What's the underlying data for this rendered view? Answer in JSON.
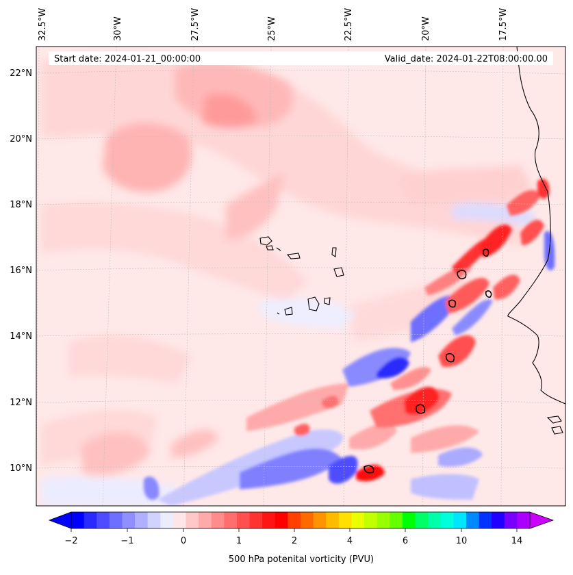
{
  "header": {
    "start_date": "Start date: 2024-01-21_00:00:00",
    "valid_date": "Valid_date: 2024-01-22T08:00:00.00"
  },
  "map": {
    "lon_labels": [
      "32.5°W",
      "30°W",
      "27.5°W",
      "25°W",
      "22.5°W",
      "20°W",
      "17.5°W"
    ],
    "lat_labels": [
      "22°N",
      "20°N",
      "18°N",
      "16°N",
      "14°N",
      "12°N",
      "10°N"
    ],
    "background_color": "#ffe8e8"
  },
  "colorbar": {
    "label": "500 hPa potenital vorticity (PVU)",
    "tick_labels": [
      "−2",
      "−1",
      "0",
      "1",
      "2",
      "4",
      "6",
      "10",
      "14"
    ],
    "colors": [
      "#0000ff",
      "#2a2aff",
      "#4d4dff",
      "#6e6eff",
      "#8f8fff",
      "#b0b0ff",
      "#d2d2ff",
      "#ececff",
      "#ffe6e6",
      "#ffc8c8",
      "#ffaaaa",
      "#ff8c8c",
      "#ff6e6e",
      "#ff5050",
      "#ff3232",
      "#ff1414",
      "#ff0000",
      "#ff4000",
      "#ff6a00",
      "#ff9400",
      "#ffbb00",
      "#ffe000",
      "#eaff00",
      "#c2ff00",
      "#98ff00",
      "#66ff00",
      "#00ff00",
      "#00ff66",
      "#00ffaa",
      "#00ffdd",
      "#00e6ff",
      "#0088ff",
      "#0033ff",
      "#2200ff",
      "#7700ff",
      "#aa00ff"
    ],
    "under_color": "#0000ff",
    "over_color": "#cc00ff"
  }
}
